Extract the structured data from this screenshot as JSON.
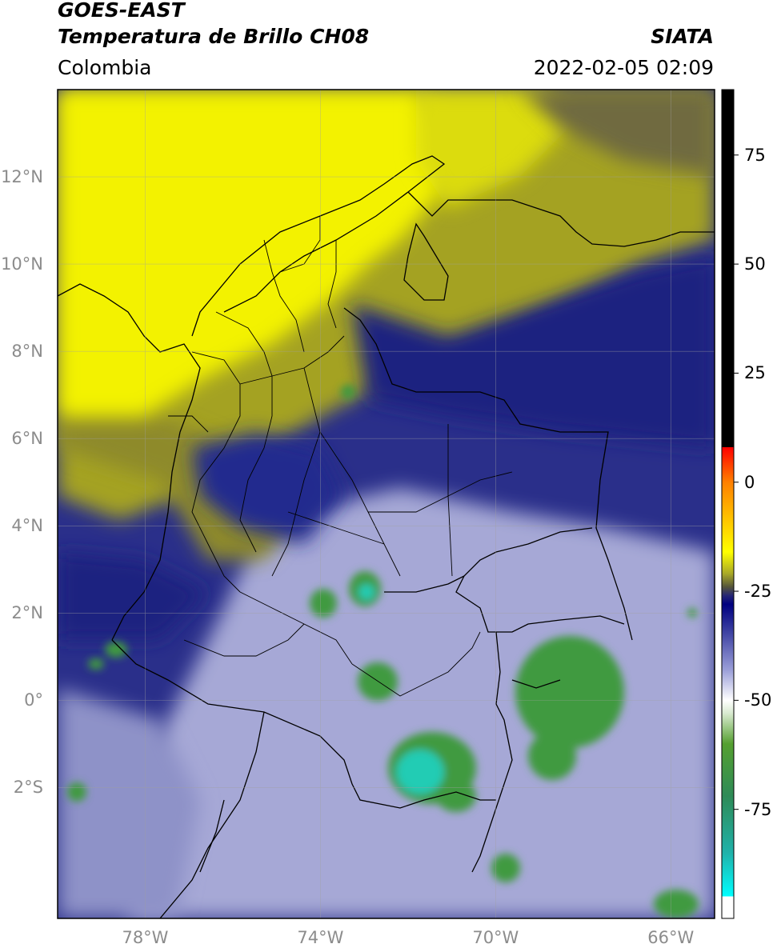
{
  "header": {
    "satellite": "GOES-EAST",
    "product": "Temperatura de Brillo CH08",
    "region": "Colombia",
    "source": "SIATA",
    "datetime": "2022-02-05 02:09"
  },
  "map": {
    "lon_range": [
      -80,
      -65
    ],
    "lat_range": [
      -5,
      14
    ],
    "lat_ticks": [
      {
        "value": 12,
        "label": "12°N"
      },
      {
        "value": 10,
        "label": "10°N"
      },
      {
        "value": 8,
        "label": "8°N"
      },
      {
        "value": 6,
        "label": "6°N"
      },
      {
        "value": 4,
        "label": "4°N"
      },
      {
        "value": 2,
        "label": "2°N"
      },
      {
        "value": 0,
        "label": "0°"
      },
      {
        "value": -2,
        "label": "2°S"
      }
    ],
    "lon_ticks": [
      {
        "value": -78,
        "label": "78°W"
      },
      {
        "value": -74,
        "label": "74°W"
      },
      {
        "value": -70,
        "label": "70°W"
      },
      {
        "value": -66,
        "label": "66°W"
      }
    ],
    "grid": true,
    "colors": {
      "warm": "#ffff00",
      "olive": "#8b8b22",
      "cold_blue": "#17207a",
      "lavender": "#b6b8de",
      "green": "#3f9a3f",
      "cyan": "#22ccb4"
    }
  },
  "colorbar": {
    "range": [
      -100,
      90
    ],
    "ticks": [
      {
        "value": 75,
        "label": "75"
      },
      {
        "value": 50,
        "label": "50"
      },
      {
        "value": 25,
        "label": "25"
      },
      {
        "value": 0,
        "label": "0"
      },
      {
        "value": -25,
        "label": "-25"
      },
      {
        "value": -50,
        "label": "-50"
      },
      {
        "value": -75,
        "label": "-75"
      }
    ],
    "stops": [
      {
        "value": -100,
        "color": "#ffffff"
      },
      {
        "value": -95,
        "color": "#ffffff"
      },
      {
        "value": -95,
        "color": "#00ffff"
      },
      {
        "value": -85,
        "color": "#20b2aa"
      },
      {
        "value": -72,
        "color": "#2e8b57"
      },
      {
        "value": -60,
        "color": "#55a030"
      },
      {
        "value": -53,
        "color": "#d8ead0"
      },
      {
        "value": -50,
        "color": "#ffffff"
      },
      {
        "value": -43,
        "color": "#9a9ed8"
      },
      {
        "value": -34,
        "color": "#3a3ea0"
      },
      {
        "value": -28,
        "color": "#000080"
      },
      {
        "value": -26,
        "color": "#252575"
      },
      {
        "value": -24,
        "color": "#55553a"
      },
      {
        "value": -21,
        "color": "#a8a828"
      },
      {
        "value": -16,
        "color": "#ffff00"
      },
      {
        "value": -8,
        "color": "#ffc000"
      },
      {
        "value": 0,
        "color": "#ff8000"
      },
      {
        "value": 8,
        "color": "#ff0000"
      },
      {
        "value": 8,
        "color": "#000000"
      },
      {
        "value": 90,
        "color": "#000000"
      }
    ]
  }
}
